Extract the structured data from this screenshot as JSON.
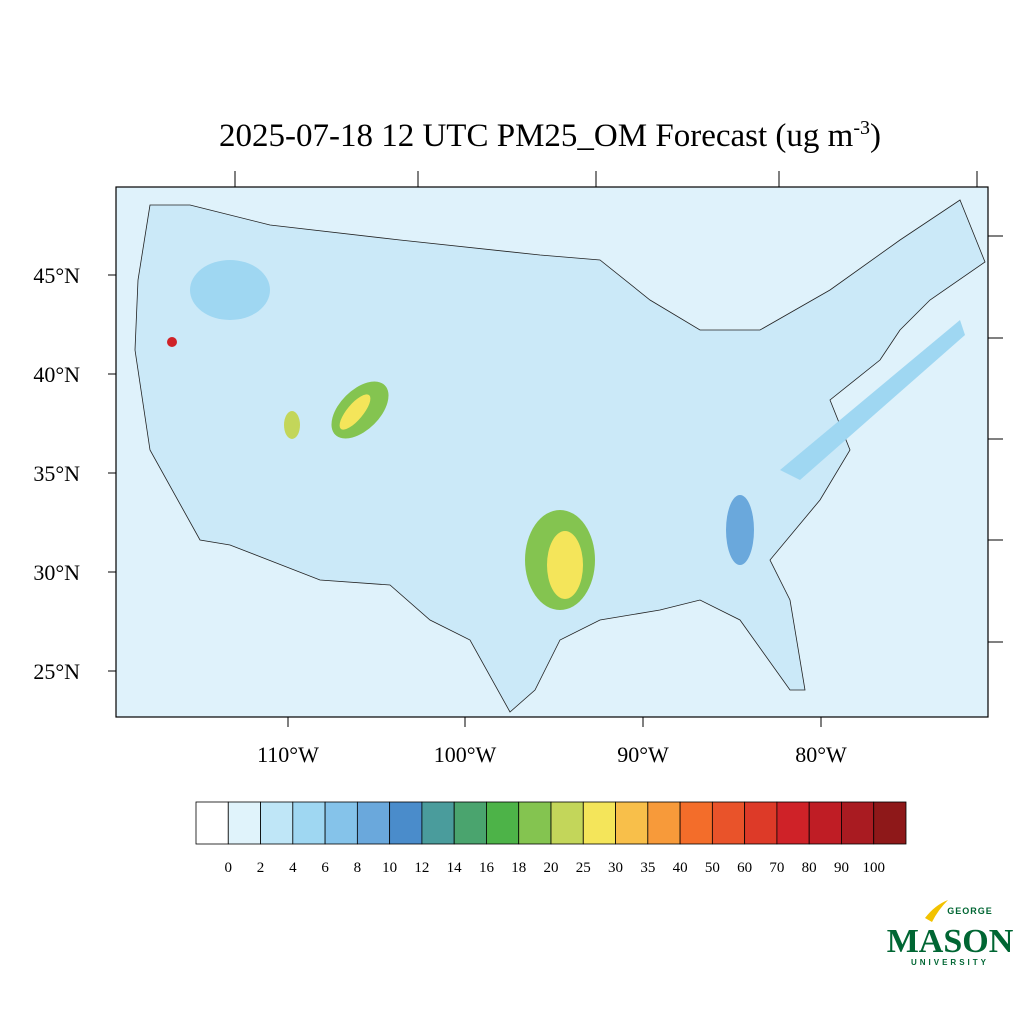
{
  "title": {
    "main": "2025-07-18 12 UTC PM25_OM Forecast (ug m",
    "superscript": "-3",
    "close": ")"
  },
  "map": {
    "lat_labels": [
      "45°N",
      "40°N",
      "35°N",
      "30°N",
      "25°N"
    ],
    "lon_labels": [
      "110°W",
      "100°W",
      "90°W",
      "80°W"
    ]
  },
  "colorbar": {
    "levels": [
      0,
      2,
      4,
      6,
      8,
      10,
      12,
      14,
      16,
      18,
      20,
      25,
      30,
      35,
      40,
      50,
      60,
      70,
      80,
      90,
      100
    ],
    "colors": [
      "#ffffff",
      "#e0f3fb",
      "#bfe6f7",
      "#9fd7f2",
      "#85c3ea",
      "#6aa8dc",
      "#4a8ccb",
      "#4a9c9c",
      "#4aa46e",
      "#4db348",
      "#84c450",
      "#c3d65a",
      "#f4e55a",
      "#f8bf4a",
      "#f79a3a",
      "#f36d2a",
      "#e9532a",
      "#dd3a28",
      "#cf2228",
      "#bf1d25",
      "#a91b21",
      "#8e1819"
    ]
  },
  "logo": {
    "top": "GEORGE",
    "main": "MASON",
    "bottom": "UNIVERSITY"
  }
}
